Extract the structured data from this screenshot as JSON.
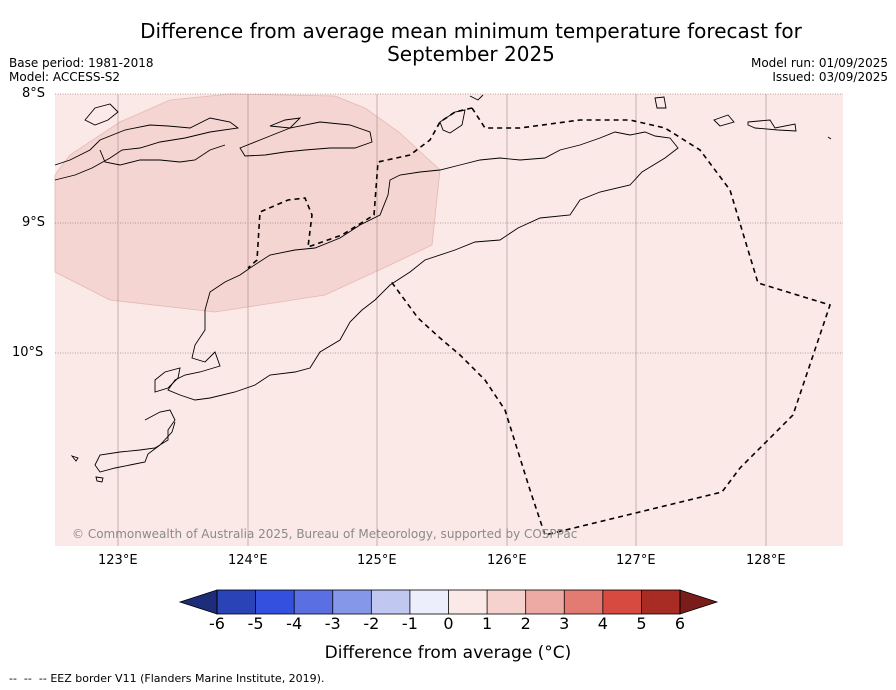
{
  "header": {
    "title_line1": "Difference from average mean minimum temperature forecast for",
    "title_line2": "September 2025",
    "base_period": "Base period: 1981-2018",
    "model": "Model: ACCESS-S2",
    "model_run": "Model run: 01/09/2025",
    "issued": "Issued: 03/09/2025"
  },
  "map": {
    "lat_labels": [
      "8°S",
      "9°S",
      "10°S"
    ],
    "lon_labels": [
      "123°E",
      "124°E",
      "125°E",
      "126°E",
      "127°E",
      "128°E"
    ],
    "copyright": "© Commonwealth of Australia 2025, Bureau of Meteorology, supported by COSPPac",
    "colors": {
      "background_anomaly": "#fbe9e7",
      "warm_anomaly": "#f5d5d2",
      "coast": "#000000"
    }
  },
  "colorbar": {
    "title": "Difference from average (°C)",
    "ticks": [
      "-6",
      "-5",
      "-4",
      "-3",
      "-2",
      "-1",
      "0",
      "1",
      "2",
      "3",
      "4",
      "5",
      "6"
    ],
    "colors": [
      "#1d2d7a",
      "#2a44b8",
      "#3350df",
      "#5a70e2",
      "#8597e8",
      "#c0c8f2",
      "#eceefb",
      "#fbe9e7",
      "#f5d2ce",
      "#eda9a3",
      "#e37b73",
      "#d64a3f",
      "#a82b24",
      "#7a1c1a"
    ]
  },
  "footer": {
    "legend_text": "EEZ border V11 (Flanders Marine Institute, 2019)."
  }
}
